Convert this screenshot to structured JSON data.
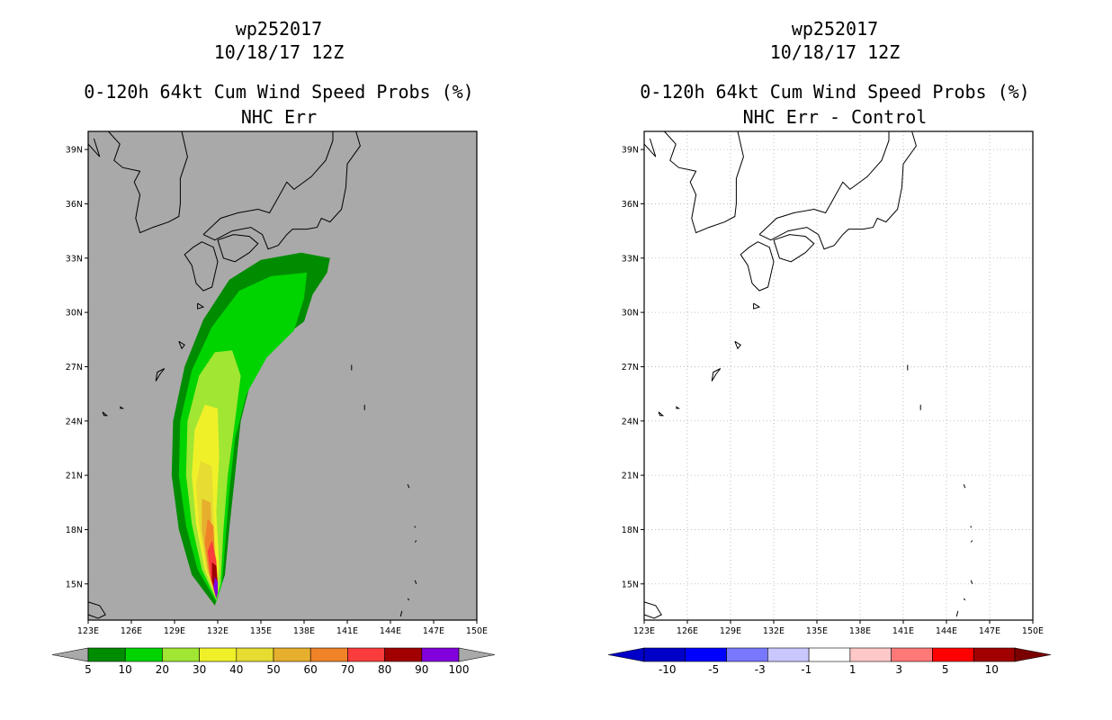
{
  "panels": [
    {
      "id": "left",
      "title_line1": "wp252017",
      "title_line2": "10/18/17 12Z",
      "title_line3": "0-120h 64kt Cum Wind Speed Probs (%)",
      "title_line4": "NHC Err",
      "background": "#a9a9a9",
      "legend_labels": [
        "5",
        "10",
        "20",
        "30",
        "40",
        "50",
        "60",
        "70",
        "80",
        "90",
        "100"
      ],
      "legend_colors": [
        "#008c00",
        "#00d400",
        "#a0e632",
        "#f0f028",
        "#e6dc32",
        "#e6af2d",
        "#f08228",
        "#fa3c3c",
        "#a00000",
        "#8200dc"
      ],
      "legend_end_color": "#a9a9a9"
    },
    {
      "id": "right",
      "title_line1": "wp252017",
      "title_line2": "10/18/17 12Z",
      "title_line3": "0-120h 64kt Cum Wind Speed Probs (%)",
      "title_line4": "NHC Err - Control",
      "background": "#ffffff",
      "legend_labels": [
        "-10",
        "-5",
        "-3",
        "-1",
        "1",
        "3",
        "5",
        "10"
      ],
      "legend_colors": [
        "#0000c8",
        "#0000ff",
        "#7878ff",
        "#c8c8ff",
        "#ffffff",
        "#ffc8c8",
        "#ff7878",
        "#ff0000",
        "#a00000"
      ],
      "legend_start_color": "#0000c8",
      "legend_end_color": "#7a0000"
    }
  ],
  "chart_data": {
    "type": "heatmap",
    "map": {
      "lon_range": [
        123,
        150
      ],
      "lat_range": [
        13,
        40
      ],
      "lon_ticks": [
        "123E",
        "126E",
        "129E",
        "132E",
        "135E",
        "138E",
        "141E",
        "144E",
        "147E",
        "150E"
      ],
      "lat_ticks": [
        "15N",
        "18N",
        "21N",
        "24N",
        "27N",
        "30N",
        "33N",
        "36N",
        "39N"
      ]
    },
    "probability_swath_lonlat": [
      {
        "level": 5,
        "color": "#008c00",
        "points": [
          [
            131.8,
            13.8
          ],
          [
            130.2,
            15.5
          ],
          [
            129.3,
            18
          ],
          [
            128.8,
            21
          ],
          [
            128.9,
            24
          ],
          [
            129.7,
            27
          ],
          [
            131,
            29.6
          ],
          [
            132.8,
            31.8
          ],
          [
            135,
            32.9
          ],
          [
            137.8,
            33.3
          ],
          [
            139.8,
            33.0
          ],
          [
            139.6,
            32.2
          ],
          [
            138.6,
            31.0
          ],
          [
            138,
            29.5
          ],
          [
            136,
            28.3
          ],
          [
            134.4,
            26.5
          ],
          [
            133.6,
            24
          ],
          [
            133.2,
            21
          ],
          [
            132.8,
            18
          ],
          [
            132.5,
            15.5
          ]
        ]
      },
      {
        "level": 10,
        "color": "#00d400",
        "points": [
          [
            131.9,
            14.0
          ],
          [
            130.6,
            15.8
          ],
          [
            129.8,
            18.2
          ],
          [
            129.3,
            21
          ],
          [
            129.4,
            24
          ],
          [
            130.2,
            26.8
          ],
          [
            131.6,
            29.2
          ],
          [
            133.5,
            31.2
          ],
          [
            135.7,
            32.0
          ],
          [
            138.2,
            32.2
          ],
          [
            138.0,
            30.8
          ],
          [
            137.3,
            29.0
          ],
          [
            135.4,
            27.5
          ],
          [
            134,
            25.5
          ],
          [
            133.2,
            23
          ],
          [
            132.8,
            20
          ],
          [
            132.5,
            17
          ],
          [
            132.3,
            15.0
          ]
        ]
      },
      {
        "level": 20,
        "color": "#a0e632",
        "points": [
          [
            131.9,
            14.1
          ],
          [
            130.9,
            15.8
          ],
          [
            130.2,
            18.3
          ],
          [
            129.8,
            21
          ],
          [
            129.9,
            24
          ],
          [
            130.7,
            26.5
          ],
          [
            131.8,
            27.8
          ],
          [
            133,
            27.9
          ],
          [
            133.6,
            26.5
          ],
          [
            133.2,
            24
          ],
          [
            132.7,
            21
          ],
          [
            132.4,
            18
          ],
          [
            132.2,
            15.0
          ]
        ]
      },
      {
        "level": 30,
        "color": "#f0f028",
        "points": [
          [
            131.9,
            14.2
          ],
          [
            131.1,
            15.8
          ],
          [
            130.5,
            18.3
          ],
          [
            130.2,
            21
          ],
          [
            130.4,
            23.5
          ],
          [
            131.1,
            24.9
          ],
          [
            132.0,
            24.7
          ],
          [
            132.1,
            22
          ],
          [
            131.9,
            19
          ],
          [
            132.1,
            16
          ]
        ]
      },
      {
        "level": 40,
        "color": "#e6dc32",
        "points": [
          [
            131.9,
            14.2
          ],
          [
            131.2,
            15.8
          ],
          [
            130.7,
            18.3
          ],
          [
            130.5,
            20.5
          ],
          [
            130.8,
            21.8
          ],
          [
            131.6,
            21.5
          ],
          [
            131.7,
            19
          ],
          [
            131.9,
            16
          ]
        ]
      },
      {
        "level": 50,
        "color": "#e6af2d",
        "points": [
          [
            131.9,
            14.2
          ],
          [
            131.3,
            15.8
          ],
          [
            130.9,
            18
          ],
          [
            130.9,
            19.7
          ],
          [
            131.5,
            19.5
          ],
          [
            131.6,
            17.5
          ],
          [
            131.9,
            15.5
          ]
        ]
      },
      {
        "level": 60,
        "color": "#f08228",
        "points": [
          [
            131.9,
            14.2
          ],
          [
            131.4,
            15.6
          ],
          [
            131.1,
            17.3
          ],
          [
            131.3,
            18.6
          ],
          [
            131.7,
            18.2
          ],
          [
            131.8,
            16.5
          ],
          [
            132.0,
            15.2
          ]
        ]
      },
      {
        "level": 70,
        "color": "#fa3c3c",
        "points": [
          [
            131.9,
            14.2
          ],
          [
            131.5,
            15.4
          ],
          [
            131.3,
            16.8
          ],
          [
            131.6,
            17.4
          ],
          [
            131.9,
            16.3
          ],
          [
            132.0,
            15.0
          ]
        ]
      },
      {
        "level": 80,
        "color": "#a00000",
        "points": [
          [
            131.9,
            14.2
          ],
          [
            131.6,
            15.2
          ],
          [
            131.6,
            16.2
          ],
          [
            131.9,
            16.0
          ],
          [
            132.0,
            14.9
          ]
        ]
      },
      {
        "level": 90,
        "color": "#8200dc",
        "points": [
          [
            131.9,
            14.2
          ],
          [
            131.7,
            14.8
          ],
          [
            131.8,
            15.4
          ],
          [
            132.0,
            15.1
          ],
          [
            132.0,
            14.5
          ]
        ]
      }
    ]
  }
}
